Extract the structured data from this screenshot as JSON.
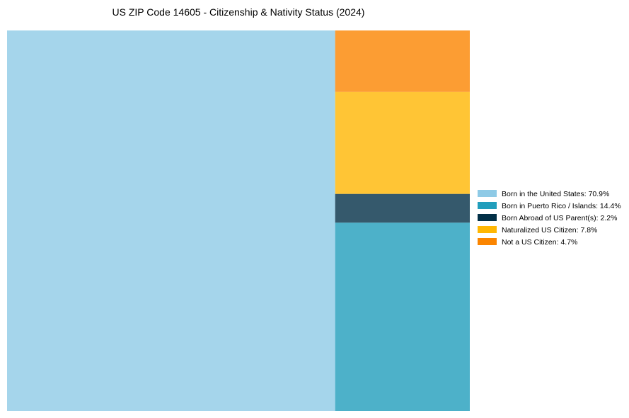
{
  "chart_data": {
    "type": "treemap",
    "title": "US ZIP Code 14605 - Citizenship & Nativity Status (2024)",
    "unit": "%",
    "series": [
      {
        "name": "Born in the United States",
        "value": 70.9,
        "color": "#8ecae6",
        "legend_label": "Born in the United States: 70.9%"
      },
      {
        "name": "Born in Puerto Rico / Islands",
        "value": 14.4,
        "color": "#219ebc",
        "legend_label": "Born in Puerto Rico / Islands: 14.4%"
      },
      {
        "name": "Born Abroad of US Parent(s)",
        "value": 2.2,
        "color": "#023047",
        "legend_label": "Born Abroad of US Parent(s): 2.2%"
      },
      {
        "name": "Naturalized US Citizen",
        "value": 7.8,
        "color": "#ffb703",
        "legend_label": "Naturalized US Citizen: 7.8%"
      },
      {
        "name": "Not a US Citizen",
        "value": 4.7,
        "color": "#fb8500",
        "legend_label": "Not a US Citizen: 4.7%"
      }
    ],
    "legend_position": "right"
  }
}
